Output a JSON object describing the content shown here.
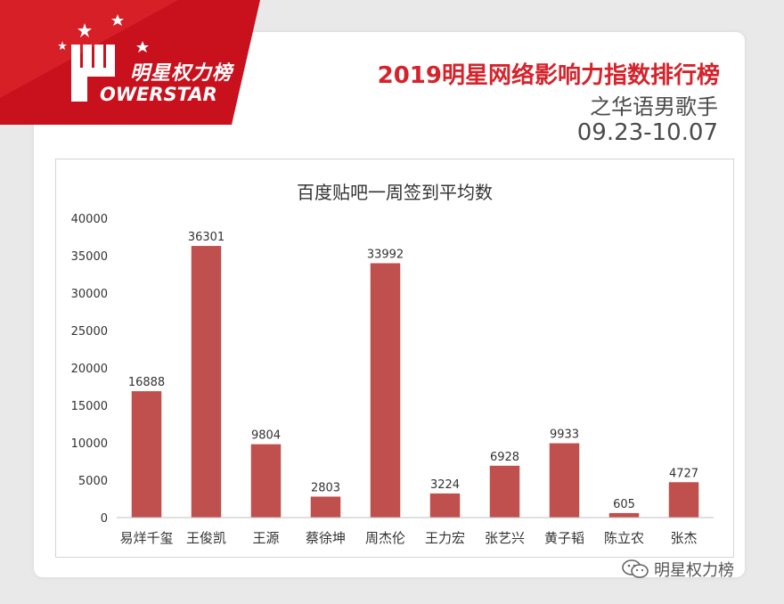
{
  "brand": {
    "logo_cn": "明星权力榜",
    "logo_en": "OWERSTAR",
    "red": "#d6232b"
  },
  "header": {
    "title": "2019明星网络影响力指数排行榜",
    "subtitle": "之华语男歌手",
    "date_range": "09.23-10.07"
  },
  "watermark": {
    "text": "明星权力榜",
    "icon": "wechat-icon"
  },
  "chart_data": {
    "type": "bar",
    "title": "百度贴吧一周签到平均数",
    "categories": [
      "易烊千玺",
      "王俊凯",
      "王源",
      "蔡徐坤",
      "周杰伦",
      "王力宏",
      "张艺兴",
      "黄子韬",
      "陈立农",
      "张杰"
    ],
    "values": [
      16888,
      36301,
      9804,
      2803,
      33992,
      3224,
      6928,
      9933,
      605,
      4727
    ],
    "ylim": [
      0,
      40000
    ],
    "yticks": [
      0,
      5000,
      10000,
      15000,
      20000,
      25000,
      30000,
      35000,
      40000
    ],
    "xlabel": "",
    "ylabel": "",
    "grid": false,
    "data_labels": true,
    "bar_color": "#c0504d"
  }
}
